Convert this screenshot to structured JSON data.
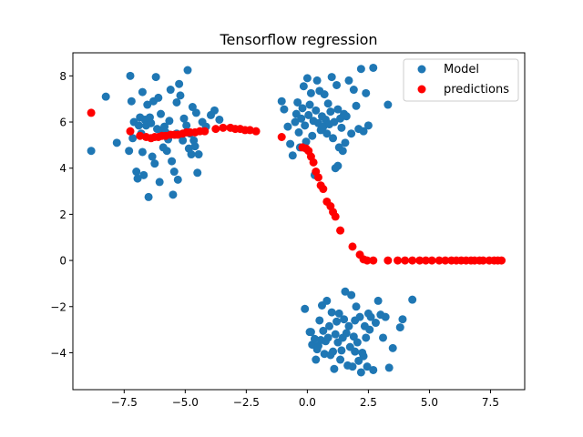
{
  "chart_data": {
    "type": "scatter",
    "title": "Tensorflow regression",
    "xlabel": "",
    "ylabel": "",
    "xlim": [
      -9.6,
      8.9
    ],
    "ylim": [
      -5.6,
      9.0
    ],
    "xticks": [
      -7.5,
      -5.0,
      -2.5,
      0.0,
      2.5,
      5.0,
      7.5
    ],
    "xtick_labels": [
      "−7.5",
      "−5.0",
      "−2.5",
      "0.0",
      "2.5",
      "5.0",
      "7.5"
    ],
    "yticks": [
      -4,
      -2,
      0,
      2,
      4,
      6,
      8
    ],
    "ytick_labels": [
      "−4",
      "−2",
      "0",
      "2",
      "4",
      "6",
      "8"
    ],
    "grid": false,
    "legend_position": "upper right",
    "series": [
      {
        "name": "Model",
        "color": "#1f77b4",
        "points": [
          [
            -8.85,
            4.75
          ],
          [
            -8.25,
            7.1
          ],
          [
            -7.8,
            5.1
          ],
          [
            -7.25,
            8.0
          ],
          [
            -7.2,
            6.9
          ],
          [
            -7.15,
            5.3
          ],
          [
            -7.1,
            6.0
          ],
          [
            -7.0,
            3.85
          ],
          [
            -6.95,
            3.55
          ],
          [
            -6.9,
            5.85
          ],
          [
            -6.85,
            6.2
          ],
          [
            -6.8,
            5.5
          ],
          [
            -6.75,
            4.7
          ],
          [
            -6.7,
            3.7
          ],
          [
            -6.65,
            6.1
          ],
          [
            -6.6,
            5.85
          ],
          [
            -6.55,
            6.75
          ],
          [
            -6.5,
            2.75
          ],
          [
            -6.45,
            6.2
          ],
          [
            -6.4,
            5.95
          ],
          [
            -6.35,
            4.5
          ],
          [
            -6.3,
            6.9
          ],
          [
            -6.25,
            4.2
          ],
          [
            -6.2,
            7.95
          ],
          [
            -6.15,
            5.7
          ],
          [
            -6.1,
            7.05
          ],
          [
            -6.05,
            3.4
          ],
          [
            -6.0,
            6.35
          ],
          [
            -5.95,
            5.6
          ],
          [
            -5.9,
            4.9
          ],
          [
            -5.85,
            5.8
          ],
          [
            -5.8,
            5.55
          ],
          [
            -5.75,
            4.75
          ],
          [
            -5.7,
            5.25
          ],
          [
            -5.65,
            6.05
          ],
          [
            -5.6,
            7.4
          ],
          [
            -5.55,
            4.3
          ],
          [
            -5.5,
            2.85
          ],
          [
            -5.45,
            3.85
          ],
          [
            -5.4,
            5.45
          ],
          [
            -5.35,
            5.5
          ],
          [
            -5.3,
            3.5
          ],
          [
            -5.25,
            7.65
          ],
          [
            -5.2,
            7.15
          ],
          [
            -5.1,
            5.2
          ],
          [
            -5.05,
            6.15
          ],
          [
            -4.95,
            5.85
          ],
          [
            -4.9,
            8.25
          ],
          [
            -4.85,
            4.85
          ],
          [
            -4.8,
            5.5
          ],
          [
            -4.75,
            4.6
          ],
          [
            -4.7,
            6.65
          ],
          [
            -4.65,
            5.2
          ],
          [
            -4.6,
            4.95
          ],
          [
            -4.55,
            6.4
          ],
          [
            -4.5,
            3.8
          ],
          [
            -4.45,
            4.6
          ],
          [
            -4.3,
            6.0
          ],
          [
            -4.15,
            5.8
          ],
          [
            -3.95,
            6.3
          ],
          [
            -3.8,
            6.5
          ],
          [
            -3.6,
            6.1
          ],
          [
            -7.3,
            4.75
          ],
          [
            -6.75,
            7.3
          ],
          [
            -5.35,
            6.85
          ],
          [
            -1.05,
            6.9
          ],
          [
            -0.95,
            6.55
          ],
          [
            -0.8,
            5.8
          ],
          [
            -0.7,
            5.05
          ],
          [
            -0.6,
            4.55
          ],
          [
            -0.5,
            6.0
          ],
          [
            -0.45,
            6.35
          ],
          [
            -0.4,
            6.85
          ],
          [
            -0.35,
            5.55
          ],
          [
            -0.3,
            4.9
          ],
          [
            -0.25,
            6.15
          ],
          [
            -0.2,
            6.6
          ],
          [
            -0.15,
            7.55
          ],
          [
            -0.1,
            5.85
          ],
          [
            -0.05,
            5.15
          ],
          [
            0.0,
            7.9
          ],
          [
            0.05,
            6.3
          ],
          [
            0.1,
            6.75
          ],
          [
            0.15,
            7.25
          ],
          [
            0.2,
            5.4
          ],
          [
            0.25,
            6.05
          ],
          [
            0.3,
            3.7
          ],
          [
            0.35,
            6.5
          ],
          [
            0.4,
            7.8
          ],
          [
            0.45,
            5.95
          ],
          [
            0.5,
            7.35
          ],
          [
            0.55,
            5.65
          ],
          [
            0.6,
            6.25
          ],
          [
            0.65,
            5.8
          ],
          [
            0.7,
            7.2
          ],
          [
            0.75,
            6.1
          ],
          [
            0.8,
            5.5
          ],
          [
            0.85,
            6.8
          ],
          [
            0.9,
            5.9
          ],
          [
            0.95,
            6.45
          ],
          [
            1.0,
            7.95
          ],
          [
            1.05,
            5.3
          ],
          [
            1.1,
            6.0
          ],
          [
            1.15,
            4.0
          ],
          [
            1.2,
            7.6
          ],
          [
            1.25,
            6.55
          ],
          [
            1.3,
            4.9
          ],
          [
            1.35,
            6.15
          ],
          [
            1.4,
            5.75
          ],
          [
            1.45,
            4.75
          ],
          [
            1.5,
            6.35
          ],
          [
            1.55,
            5.1
          ],
          [
            1.6,
            6.25
          ],
          [
            1.7,
            7.8
          ],
          [
            1.8,
            5.5
          ],
          [
            1.9,
            7.4
          ],
          [
            2.0,
            6.7
          ],
          [
            2.1,
            5.7
          ],
          [
            2.2,
            8.3
          ],
          [
            2.3,
            5.6
          ],
          [
            2.4,
            7.25
          ],
          [
            2.5,
            5.85
          ],
          [
            2.7,
            8.35
          ],
          [
            3.3,
            6.75
          ],
          [
            1.25,
            4.1
          ],
          [
            -0.1,
            -2.1
          ],
          [
            0.1,
            -3.1
          ],
          [
            0.2,
            -3.65
          ],
          [
            0.3,
            -3.4
          ],
          [
            0.35,
            -4.3
          ],
          [
            0.4,
            -3.85
          ],
          [
            0.45,
            -3.7
          ],
          [
            0.5,
            -2.6
          ],
          [
            0.55,
            -3.45
          ],
          [
            0.6,
            -1.95
          ],
          [
            0.65,
            -3.05
          ],
          [
            0.7,
            -4.05
          ],
          [
            0.75,
            -3.5
          ],
          [
            0.8,
            -1.75
          ],
          [
            0.85,
            -3.35
          ],
          [
            0.9,
            -2.85
          ],
          [
            0.95,
            -4.1
          ],
          [
            1.0,
            -2.25
          ],
          [
            1.05,
            -3.95
          ],
          [
            1.1,
            -4.7
          ],
          [
            1.15,
            -3.2
          ],
          [
            1.2,
            -2.65
          ],
          [
            1.25,
            -3.55
          ],
          [
            1.3,
            -2.3
          ],
          [
            1.35,
            -4.3
          ],
          [
            1.4,
            -3.9
          ],
          [
            1.45,
            -3.35
          ],
          [
            1.5,
            -2.55
          ],
          [
            1.55,
            -1.35
          ],
          [
            1.6,
            -3.15
          ],
          [
            1.65,
            -4.55
          ],
          [
            1.7,
            -2.85
          ],
          [
            1.75,
            -3.75
          ],
          [
            1.8,
            -1.5
          ],
          [
            1.85,
            -4.6
          ],
          [
            1.9,
            -3.3
          ],
          [
            1.95,
            -2.6
          ],
          [
            2.0,
            -2.0
          ],
          [
            2.05,
            -3.55
          ],
          [
            2.1,
            -4.35
          ],
          [
            2.15,
            -2.45
          ],
          [
            2.2,
            -4.85
          ],
          [
            2.25,
            -4.0
          ],
          [
            2.3,
            -4.15
          ],
          [
            2.35,
            -2.85
          ],
          [
            2.4,
            -3.35
          ],
          [
            2.45,
            -4.6
          ],
          [
            2.5,
            -2.3
          ],
          [
            2.55,
            -3.0
          ],
          [
            2.6,
            -2.45
          ],
          [
            2.7,
            -4.75
          ],
          [
            2.8,
            -2.7
          ],
          [
            2.9,
            -1.75
          ],
          [
            3.0,
            -2.35
          ],
          [
            3.1,
            -3.35
          ],
          [
            3.2,
            -2.45
          ],
          [
            3.35,
            -4.65
          ],
          [
            3.5,
            -3.8
          ],
          [
            3.8,
            -2.9
          ],
          [
            3.9,
            -2.55
          ],
          [
            4.3,
            -1.7
          ],
          [
            0.15,
            -3.1
          ],
          [
            1.95,
            -3.95
          ]
        ]
      },
      {
        "name": "predictions",
        "color": "#ff0000",
        "points": [
          [
            -8.85,
            6.4
          ],
          [
            -7.25,
            5.6
          ],
          [
            -6.85,
            5.4
          ],
          [
            -6.6,
            5.35
          ],
          [
            -6.4,
            5.3
          ],
          [
            -6.25,
            5.35
          ],
          [
            -6.1,
            5.35
          ],
          [
            -5.95,
            5.4
          ],
          [
            -5.8,
            5.4
          ],
          [
            -5.6,
            5.45
          ],
          [
            -5.45,
            5.45
          ],
          [
            -5.3,
            5.45
          ],
          [
            -5.1,
            5.5
          ],
          [
            -4.95,
            5.55
          ],
          [
            -4.8,
            5.55
          ],
          [
            -4.6,
            5.55
          ],
          [
            -4.4,
            5.6
          ],
          [
            -4.2,
            5.6
          ],
          [
            -3.75,
            5.7
          ],
          [
            -3.45,
            5.75
          ],
          [
            -3.15,
            5.75
          ],
          [
            -2.95,
            5.7
          ],
          [
            -2.75,
            5.7
          ],
          [
            -2.55,
            5.65
          ],
          [
            -2.35,
            5.65
          ],
          [
            -2.1,
            5.6
          ],
          [
            -1.05,
            5.35
          ],
          [
            -0.2,
            4.9
          ],
          [
            -0.05,
            4.85
          ],
          [
            0.05,
            4.75
          ],
          [
            0.15,
            4.5
          ],
          [
            0.25,
            4.25
          ],
          [
            0.35,
            3.85
          ],
          [
            0.45,
            3.6
          ],
          [
            0.55,
            3.25
          ],
          [
            0.65,
            3.1
          ],
          [
            0.8,
            2.55
          ],
          [
            0.95,
            2.35
          ],
          [
            1.05,
            2.1
          ],
          [
            1.15,
            1.9
          ],
          [
            1.35,
            1.3
          ],
          [
            1.85,
            0.6
          ],
          [
            2.15,
            0.25
          ],
          [
            2.3,
            0.05
          ],
          [
            2.45,
            0.0
          ],
          [
            2.7,
            0.0
          ],
          [
            3.3,
            0.0
          ],
          [
            3.7,
            0.0
          ],
          [
            4.0,
            0.0
          ],
          [
            4.3,
            0.0
          ],
          [
            4.6,
            0.0
          ],
          [
            4.85,
            0.0
          ],
          [
            5.1,
            0.0
          ],
          [
            5.4,
            0.0
          ],
          [
            5.65,
            0.0
          ],
          [
            5.9,
            0.0
          ],
          [
            6.1,
            0.0
          ],
          [
            6.3,
            0.0
          ],
          [
            6.5,
            0.0
          ],
          [
            6.7,
            0.0
          ],
          [
            6.85,
            0.0
          ],
          [
            7.05,
            0.0
          ],
          [
            7.2,
            0.0
          ],
          [
            7.45,
            0.0
          ],
          [
            7.65,
            0.0
          ],
          [
            7.8,
            0.0
          ],
          [
            7.95,
            0.0
          ]
        ]
      }
    ]
  }
}
